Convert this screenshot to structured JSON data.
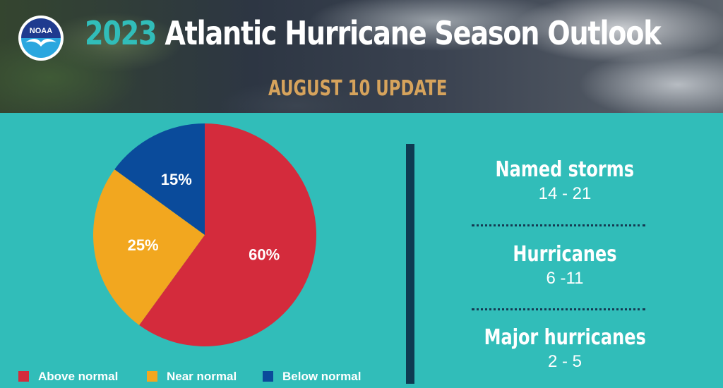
{
  "header": {
    "logo_text": "NOAA",
    "title_year": "2023",
    "title_rest": "Atlantic Hurricane Season Outlook",
    "subtitle": "AUGUST 10 UPDATE"
  },
  "chart_data": {
    "type": "pie",
    "slices": [
      {
        "label": "Above normal",
        "value": 60,
        "display": "60%",
        "color": "#d42b3c"
      },
      {
        "label": "Near normal",
        "value": 25,
        "display": "25%",
        "color": "#f2a71f"
      },
      {
        "label": "Below normal",
        "value": 15,
        "display": "15%",
        "color": "#0a4b9b"
      }
    ],
    "legend_placement": "bottom"
  },
  "stats": [
    {
      "label": "Named storms",
      "value": "14 - 21"
    },
    {
      "label": "Hurricanes",
      "value": "6 -11"
    },
    {
      "label": "Major hurricanes",
      "value": "2 - 5"
    }
  ],
  "colors": {
    "background": "#31bdb9",
    "divider": "#0e3b52",
    "subtitle": "#d6a35c"
  }
}
